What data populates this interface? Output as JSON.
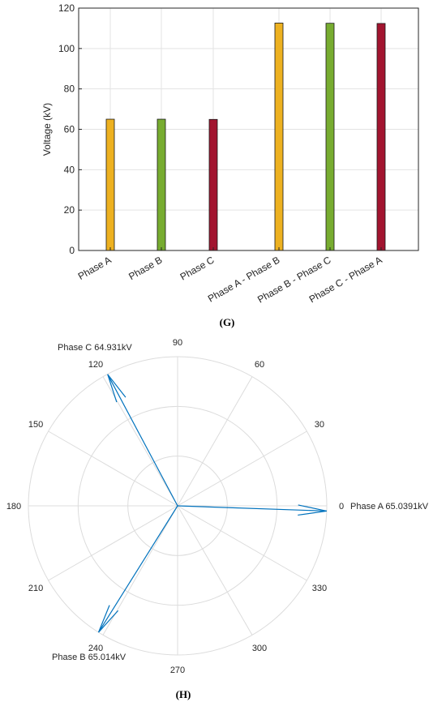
{
  "captions": {
    "g": "(G)",
    "h": "(H)"
  },
  "chart_data": [
    {
      "type": "bar",
      "title": "",
      "xlabel": "",
      "ylabel": "Voltage (kV)",
      "ylim": [
        0,
        120
      ],
      "yticks": [
        0,
        20,
        40,
        60,
        80,
        100,
        120
      ],
      "grid": true,
      "categories": [
        "Phase A",
        "Phase B",
        "Phase C",
        "Phase A - Phase B",
        "Phase B - Phase C",
        "Phase C - Phase A"
      ],
      "values": [
        65.0,
        65.0,
        64.9,
        112.6,
        112.5,
        112.4
      ],
      "colors": [
        "#EDB120",
        "#77AC30",
        "#A2142F",
        "#EDB120",
        "#77AC30",
        "#A2142F"
      ]
    },
    {
      "type": "polar",
      "angle_ticks": [
        "0",
        "30",
        "60",
        "90",
        "120",
        "150",
        "180",
        "210",
        "240",
        "270",
        "300",
        "330"
      ],
      "grid": true,
      "rmax": 65.0391,
      "vectors": [
        {
          "label": "Phase A",
          "value_label": "65.0391kV",
          "magnitude": 65.0391,
          "angle_deg": -2
        },
        {
          "label": "Phase B",
          "value_label": "65.014kV",
          "magnitude": 65.014,
          "angle_deg": 238
        },
        {
          "label": "Phase C",
          "value_label": "64.931kV",
          "magnitude": 64.931,
          "angle_deg": 118
        }
      ],
      "vector_color": "#0072BD"
    }
  ]
}
